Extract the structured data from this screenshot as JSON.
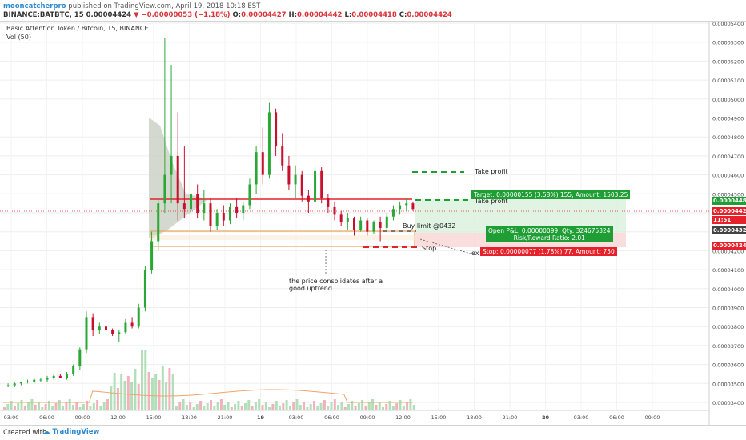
{
  "header": {
    "author": "mooncatcherpro",
    "published": "published on TradingView.com, April 19, 2018 10:18 EST",
    "symbol": "BINANCE:BATBTC, 15",
    "last": "0.00004424",
    "change": "−0.00000053 (−1.18%)",
    "o_label": "O:",
    "o": "0.00004427",
    "h_label": "H:",
    "h": "0.00004442",
    "l_label": "L:",
    "l": "0.00004418",
    "c_label": "C:",
    "c": "0.00004424"
  },
  "legend": {
    "title": "Basic Attention Token / Bitcoin, 15, BINANCE",
    "vol": "Vol (50)"
  },
  "colors": {
    "up": "#2aa836",
    "down": "#c8102e",
    "accent": "#2e8bd0",
    "target": "#1f9e35",
    "stop": "#e5212b",
    "range": "#e8a65a"
  },
  "annotations": {
    "take_profit": "Take profit",
    "take_profit_2": "Take profit",
    "buy_limit": "Buy limit @0432",
    "stop": "Stop",
    "consolidation_line1": "the price consolidates after a",
    "consolidation_line2": "good uptrend",
    "exit_partial": "ex"
  },
  "position": {
    "target": "Target: 0.00000155 (3.58%) 155, Amount: 1503.25",
    "open_pl": "Open P&L: 0.00000099, Qty: 324675324",
    "risk_reward": "Risk/Reward Ratio: 2.01",
    "stop": "Stop: 0.00000077 (1.78%) 77, Amount: 750"
  },
  "price_tags": {
    "target": "0.00004480",
    "current": "0.00004424",
    "countdown": "11:51",
    "entry": "0.00004325",
    "stop": "0.00004248"
  },
  "footer": {
    "created": "Created with",
    "brand": "TradingView"
  },
  "chart_data": {
    "type": "candlestick",
    "y_ticks": [
      "0.00005400",
      "0.00005300",
      "0.00005200",
      "0.00005100",
      "0.00005000",
      "0.00004900",
      "0.00004800",
      "0.00004700",
      "0.00004600",
      "0.00004500",
      "0.00004400",
      "0.00004300",
      "0.00004200",
      "0.00004100",
      "0.00004000",
      "0.00003900",
      "0.00003800",
      "0.00003700",
      "0.00003600",
      "0.00003500",
      "0.00003400"
    ],
    "x_ticks": [
      "03:00",
      "06:00",
      "09:00",
      "12:00",
      "15:00",
      "18:00",
      "21:00",
      "19",
      "03:00",
      "06:00",
      "09:00",
      "12:00",
      "15:00",
      "18:00",
      "21:00",
      "20",
      "03:00",
      "06:00",
      "09:00"
    ],
    "ylim": [
      3.4e-05,
      5.4e-05
    ],
    "candles": [
      [
        3.49e-05,
        3.5e-05,
        3.48e-05,
        3.49e-05
      ],
      [
        3.49e-05,
        3.51e-05,
        3.48e-05,
        3.5e-05
      ],
      [
        3.5e-05,
        3.51e-05,
        3.49e-05,
        3.51e-05
      ],
      [
        3.51e-05,
        3.52e-05,
        3.5e-05,
        3.51e-05
      ],
      [
        3.51e-05,
        3.53e-05,
        3.5e-05,
        3.52e-05
      ],
      [
        3.52e-05,
        3.53e-05,
        3.51e-05,
        3.52e-05
      ],
      [
        3.52e-05,
        3.54e-05,
        3.51e-05,
        3.53e-05
      ],
      [
        3.53e-05,
        3.55e-05,
        3.52e-05,
        3.54e-05
      ],
      [
        3.54e-05,
        3.55e-05,
        3.53e-05,
        3.53e-05
      ],
      [
        3.53e-05,
        3.56e-05,
        3.52e-05,
        3.55e-05
      ],
      [
        3.55e-05,
        3.6e-05,
        3.54e-05,
        3.59e-05
      ],
      [
        3.59e-05,
        3.69e-05,
        3.57e-05,
        3.68e-05
      ],
      [
        3.68e-05,
        3.88e-05,
        3.66e-05,
        3.85e-05
      ],
      [
        3.85e-05,
        3.87e-05,
        3.75e-05,
        3.78e-05
      ],
      [
        3.78e-05,
        3.82e-05,
        3.76e-05,
        3.8e-05
      ],
      [
        3.8e-05,
        3.81e-05,
        3.77e-05,
        3.78e-05
      ],
      [
        3.78e-05,
        3.79e-05,
        3.75e-05,
        3.76e-05
      ],
      [
        3.76e-05,
        3.78e-05,
        3.72e-05,
        3.77e-05
      ],
      [
        3.77e-05,
        3.84e-05,
        3.76e-05,
        3.82e-05
      ],
      [
        3.82e-05,
        3.85e-05,
        3.79e-05,
        3.8e-05
      ],
      [
        3.8e-05,
        3.92e-05,
        3.79e-05,
        3.9e-05
      ],
      [
        3.9e-05,
        4.12e-05,
        3.88e-05,
        4.1e-05
      ],
      [
        4.1e-05,
        4.3e-05,
        4.08e-05,
        4.25e-05
      ],
      [
        4.25e-05,
        4.48e-05,
        4.2e-05,
        4.45e-05
      ],
      [
        4.45e-05,
        5.32e-05,
        4.4e-05,
        4.6e-05
      ],
      [
        4.6e-05,
        5.18e-05,
        4.45e-05,
        4.7e-05
      ],
      [
        4.7e-05,
        4.93e-05,
        4.36e-05,
        4.45e-05
      ],
      [
        4.45e-05,
        4.75e-05,
        4.37e-05,
        4.42e-05
      ],
      [
        4.42e-05,
        4.6e-05,
        4.35e-05,
        4.5e-05
      ],
      [
        4.5e-05,
        4.55e-05,
        4.37e-05,
        4.4e-05
      ],
      [
        4.4e-05,
        4.52e-05,
        4.36e-05,
        4.45e-05
      ],
      [
        4.45e-05,
        4.48e-05,
        4.3e-05,
        4.33e-05
      ],
      [
        4.33e-05,
        4.42e-05,
        4.31e-05,
        4.4e-05
      ],
      [
        4.4e-05,
        4.44e-05,
        4.33e-05,
        4.36e-05
      ],
      [
        4.36e-05,
        4.45e-05,
        4.34e-05,
        4.43e-05
      ],
      [
        4.43e-05,
        4.48e-05,
        4.37e-05,
        4.4e-05
      ],
      [
        4.4e-05,
        4.46e-05,
        4.36e-05,
        4.44e-05
      ],
      [
        4.44e-05,
        4.58e-05,
        4.42e-05,
        4.55e-05
      ],
      [
        4.55e-05,
        4.75e-05,
        4.5e-05,
        4.72e-05
      ],
      [
        4.72e-05,
        4.85e-05,
        4.55e-05,
        4.6e-05
      ],
      [
        4.6e-05,
        4.98e-05,
        4.58e-05,
        4.93e-05
      ],
      [
        4.93e-05,
        4.95e-05,
        4.7e-05,
        4.75e-05
      ],
      [
        4.75e-05,
        4.82e-05,
        4.62e-05,
        4.65e-05
      ],
      [
        4.65e-05,
        4.7e-05,
        4.52e-05,
        4.55e-05
      ],
      [
        4.55e-05,
        4.65e-05,
        4.48e-05,
        4.6e-05
      ],
      [
        4.6e-05,
        4.62e-05,
        4.46e-05,
        4.49e-05
      ],
      [
        4.49e-05,
        4.52e-05,
        4.4e-05,
        4.46e-05
      ],
      [
        4.46e-05,
        4.66e-05,
        4.45e-05,
        4.62e-05
      ],
      [
        4.62e-05,
        4.64e-05,
        4.45e-05,
        4.48e-05
      ],
      [
        4.48e-05,
        4.5e-05,
        4.4e-05,
        4.43e-05
      ],
      [
        4.43e-05,
        4.46e-05,
        4.36e-05,
        4.39e-05
      ],
      [
        4.39e-05,
        4.41e-05,
        4.33e-05,
        4.35e-05
      ],
      [
        4.35e-05,
        4.4e-05,
        4.31e-05,
        4.37e-05
      ],
      [
        4.37e-05,
        4.38e-05,
        4.28e-05,
        4.31e-05
      ],
      [
        4.31e-05,
        4.38e-05,
        4.3e-05,
        4.36e-05
      ],
      [
        4.36e-05,
        4.37e-05,
        4.28e-05,
        4.3e-05
      ],
      [
        4.3e-05,
        4.36e-05,
        4.29e-05,
        4.35e-05
      ],
      [
        4.35e-05,
        4.38e-05,
        4.25e-05,
        4.32e-05
      ],
      [
        4.32e-05,
        4.4e-05,
        4.31e-05,
        4.38e-05
      ],
      [
        4.38e-05,
        4.44e-05,
        4.36e-05,
        4.42e-05
      ],
      [
        4.42e-05,
        4.46e-05,
        4.39e-05,
        4.44e-05
      ],
      [
        4.44e-05,
        4.48e-05,
        4.41e-05,
        4.45e-05
      ],
      [
        4.45e-05,
        4.46e-05,
        4.41e-05,
        4.42e-05
      ]
    ],
    "volume_note": "volume bars in lower pane (green/red), Vol (50) moving average line"
  }
}
